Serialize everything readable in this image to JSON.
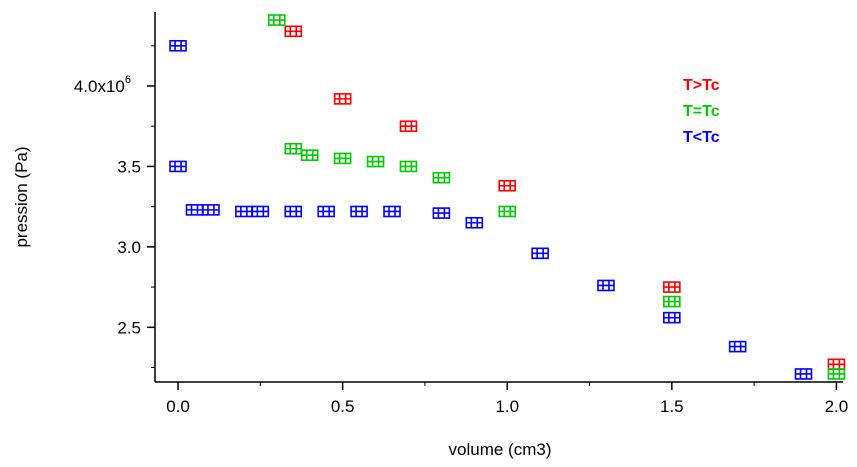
{
  "chart_data": {
    "type": "scatter",
    "title": "",
    "xlabel": "volume (cm3)",
    "ylabel": "pression (Pa)",
    "xlim": [
      -0.07,
      2.02
    ],
    "ylim": [
      2160000,
      4460000
    ],
    "x_ticks": [
      {
        "value": 0.0,
        "label": "0.0"
      },
      {
        "value": 0.5,
        "label": "0.5"
      },
      {
        "value": 1.0,
        "label": "1.0"
      },
      {
        "value": 1.5,
        "label": "1.5"
      },
      {
        "value": 2.0,
        "label": "2.0"
      }
    ],
    "y_ticks": [
      {
        "value": 2500000,
        "label": "2.5"
      },
      {
        "value": 3000000,
        "label": "3.0"
      },
      {
        "value": 3500000,
        "label": "3.5"
      },
      {
        "value": 4000000,
        "label": "4.0x10",
        "sup": "6"
      }
    ],
    "grid": false,
    "legend_position": "top-right",
    "series": [
      {
        "name": "T>Tc",
        "color": "#ff0000",
        "x": [
          0.35,
          0.5,
          0.7,
          1.0,
          1.5,
          2.0
        ],
        "y": [
          4340000,
          3920000,
          3750000,
          3380000,
          2750000,
          2270000
        ]
      },
      {
        "name": "T=Tc",
        "color": "#00cc00",
        "x": [
          0.3,
          0.35,
          0.4,
          0.5,
          0.6,
          0.7,
          0.8,
          1.0,
          1.5,
          2.0
        ],
        "y": [
          4410000,
          3610000,
          3570000,
          3550000,
          3530000,
          3500000,
          3430000,
          3220000,
          2660000,
          2210000
        ]
      },
      {
        "name": "T<Tc",
        "color": "#0000ff",
        "x": [
          0.0,
          0.0,
          0.05,
          0.1,
          0.2,
          0.25,
          0.35,
          0.45,
          0.55,
          0.65,
          0.8,
          0.9,
          1.1,
          1.3,
          1.5,
          1.7,
          1.9
        ],
        "y": [
          4250000,
          3500000,
          3230000,
          3230000,
          3220000,
          3220000,
          3220000,
          3220000,
          3220000,
          3220000,
          3210000,
          3150000,
          2960000,
          2760000,
          2560000,
          2380000,
          2210000
        ]
      }
    ]
  }
}
